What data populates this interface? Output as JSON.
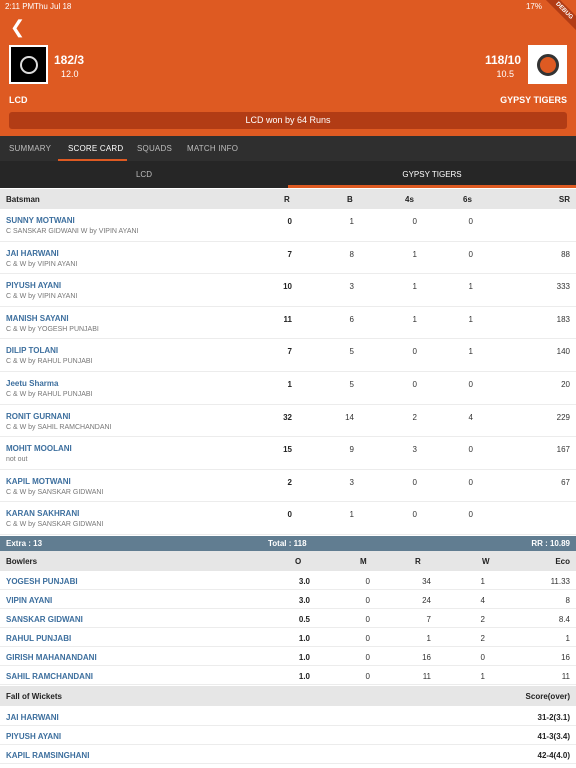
{
  "status_bar": {
    "time": "2:11 PM",
    "date": "Thu Jul 18",
    "right": "17%"
  },
  "debug_label": "DEBUG",
  "header": {
    "team1": {
      "name": "LCD",
      "score": "182/3",
      "overs": "12.0"
    },
    "team2": {
      "name": "GYPSY TIGERS",
      "score": "118/10",
      "overs": "10.5"
    },
    "result": "LCD won by 64 Runs",
    "colors": {
      "brand": "#de5a22",
      "banner": "#b23c15"
    }
  },
  "tabs": [
    {
      "label": "SUMMARY",
      "active": false
    },
    {
      "label": "SCORE CARD",
      "active": true
    },
    {
      "label": "SQUADS",
      "active": false
    },
    {
      "label": "MATCH INFO",
      "active": false
    }
  ],
  "subtabs": [
    {
      "label": "LCD",
      "active": false
    },
    {
      "label": "GYPSY TIGERS",
      "active": true
    }
  ],
  "batting": {
    "headers": [
      "Batsman",
      "R",
      "B",
      "4s",
      "6s",
      "SR"
    ],
    "rows": [
      {
        "name": "SUNNY MOTWANI",
        "dismissal": "C SANSKAR GIDWANI W by VIPIN AYANI",
        "r": "0",
        "b": "1",
        "fours": "0",
        "sixes": "0",
        "sr": ""
      },
      {
        "name": "JAI HARWANI",
        "dismissal": "C & W by VIPIN AYANI",
        "r": "7",
        "b": "8",
        "fours": "1",
        "sixes": "0",
        "sr": "88"
      },
      {
        "name": "PIYUSH AYANI",
        "dismissal": "C & W by VIPIN AYANI",
        "r": "10",
        "b": "3",
        "fours": "1",
        "sixes": "1",
        "sr": "333"
      },
      {
        "name": "MANISH SAYANI",
        "dismissal": "C & W by YOGESH PUNJABI",
        "r": "11",
        "b": "6",
        "fours": "1",
        "sixes": "1",
        "sr": "183"
      },
      {
        "name": "DILIP TOLANI",
        "dismissal": "C & W by RAHUL PUNJABI",
        "r": "7",
        "b": "5",
        "fours": "0",
        "sixes": "1",
        "sr": "140"
      },
      {
        "name": "Jeetu Sharma",
        "dismissal": "C & W by RAHUL PUNJABI",
        "r": "1",
        "b": "5",
        "fours": "0",
        "sixes": "0",
        "sr": "20"
      },
      {
        "name": "RONIT GURNANI",
        "dismissal": "C & W by SAHIL RAMCHANDANI",
        "r": "32",
        "b": "14",
        "fours": "2",
        "sixes": "4",
        "sr": "229"
      },
      {
        "name": "MOHIT MOOLANI",
        "dismissal": "not out",
        "r": "15",
        "b": "9",
        "fours": "3",
        "sixes": "0",
        "sr": "167"
      },
      {
        "name": "KAPIL MOTWANI",
        "dismissal": "C & W by SANSKAR GIDWANI",
        "r": "2",
        "b": "3",
        "fours": "0",
        "sixes": "0",
        "sr": "67"
      },
      {
        "name": "KARAN SAKHRANI",
        "dismissal": "C & W by SANSKAR GIDWANI",
        "r": "0",
        "b": "1",
        "fours": "0",
        "sixes": "0",
        "sr": ""
      }
    ]
  },
  "summary": {
    "extra": "Extra : 13",
    "total": "Total : 118",
    "rr": "RR : 10.89"
  },
  "bowling": {
    "headers": [
      "Bowlers",
      "O",
      "M",
      "R",
      "W",
      "Eco"
    ],
    "rows": [
      {
        "name": "YOGESH PUNJABI",
        "o": "3.0",
        "m": "0",
        "r": "34",
        "w": "1",
        "eco": "11.33"
      },
      {
        "name": "VIPIN AYANI",
        "o": "3.0",
        "m": "0",
        "r": "24",
        "w": "4",
        "eco": "8"
      },
      {
        "name": "SANSKAR GIDWANI",
        "o": "0.5",
        "m": "0",
        "r": "7",
        "w": "2",
        "eco": "8.4"
      },
      {
        "name": "RAHUL PUNJABI",
        "o": "1.0",
        "m": "0",
        "r": "1",
        "w": "2",
        "eco": "1"
      },
      {
        "name": "GIRISH MAHANANDANI",
        "o": "1.0",
        "m": "0",
        "r": "16",
        "w": "0",
        "eco": "16"
      },
      {
        "name": "SAHIL RAMCHANDANI",
        "o": "1.0",
        "m": "0",
        "r": "11",
        "w": "1",
        "eco": "11"
      }
    ]
  },
  "wickets": {
    "headers": [
      "Fall of Wickets",
      "Score(over)"
    ],
    "rows": [
      {
        "name": "JAI HARWANI",
        "score": "31-2(3.1)"
      },
      {
        "name": "PIYUSH AYANI",
        "score": "41-3(3.4)"
      },
      {
        "name": "KAPIL RAMSINGHANI",
        "score": "42-4(4.0)"
      }
    ]
  }
}
